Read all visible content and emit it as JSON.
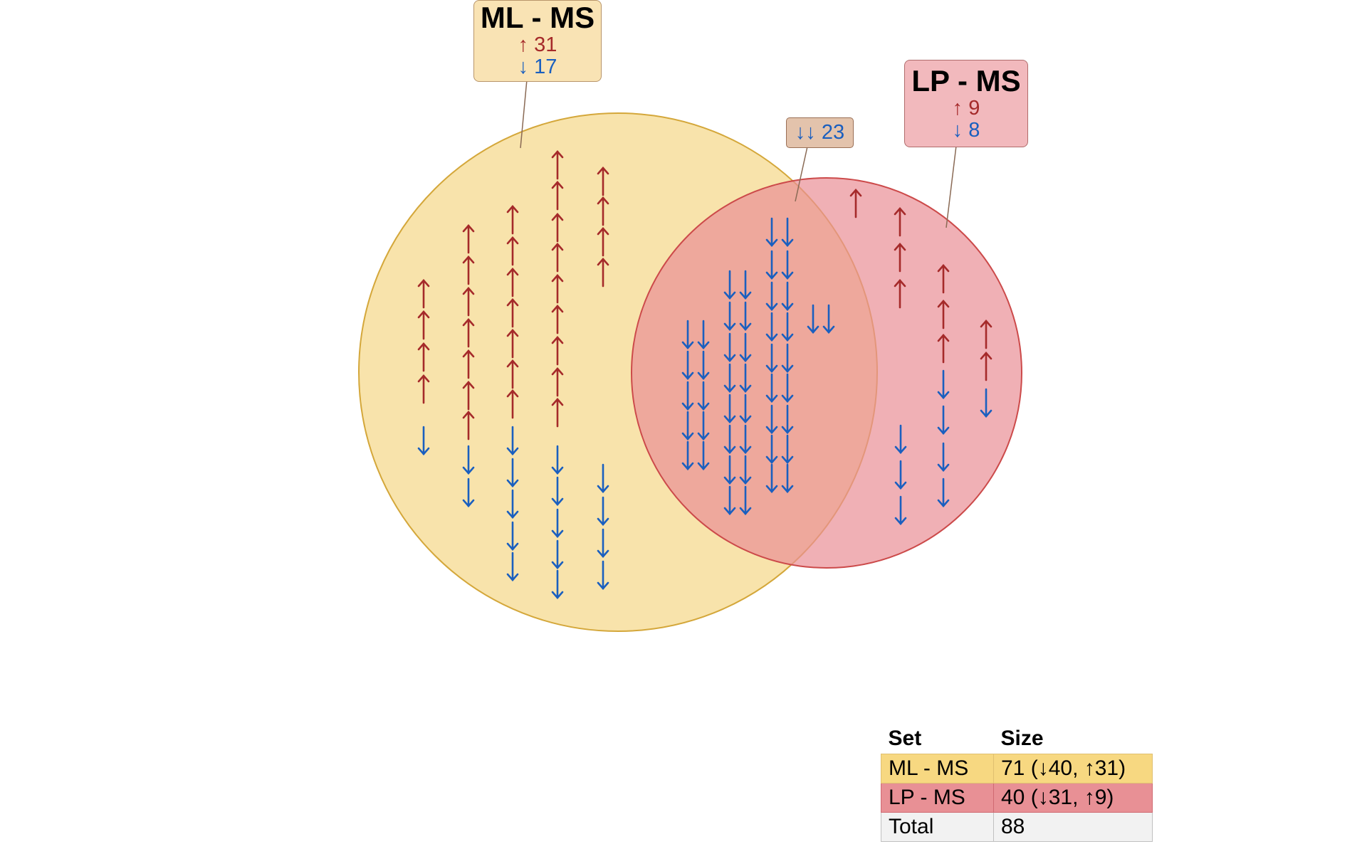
{
  "sets": [
    {
      "name": "ML - MS",
      "up_label": "↑ 31",
      "down_label": "↓ 17",
      "fill": "#f5d787",
      "stroke": "#d4a73a"
    },
    {
      "name": "LP - MS",
      "up_label": "↑ 9",
      "down_label": "↓ 8",
      "fill": "#ea8e95",
      "stroke": "#cc4a4a"
    }
  ],
  "intersection": {
    "label": "↓↓ 23",
    "fill": "#e3c3ac"
  },
  "region_counts": {
    "ml_only": {
      "up": 31,
      "down": 17
    },
    "lp_only": {
      "up": 9,
      "down": 8
    },
    "both": {
      "down_down": 23
    }
  },
  "colors": {
    "up": "#a52a2a",
    "down": "#1a5fbf"
  },
  "legend": {
    "headers": [
      "Set",
      "Size"
    ],
    "rows": [
      {
        "set": "ML - MS",
        "size": "71 (↓40, ↑31)"
      },
      {
        "set": "LP - MS",
        "size": "40 (↓31, ↑9)"
      },
      {
        "set": "Total",
        "size": "88"
      }
    ]
  }
}
